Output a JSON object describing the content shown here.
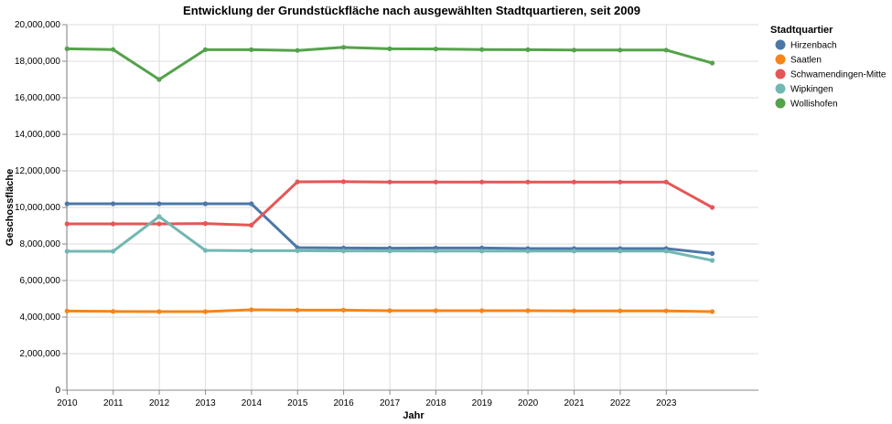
{
  "chart_data": {
    "type": "line",
    "title": "Entwicklung der Grundstückfläche nach ausgewählten Stadtquartieren, seit 2009",
    "xlabel": "Jahr",
    "ylabel": "Geschossfläche",
    "ylim": [
      0,
      20000000
    ],
    "y_ticks": [
      "0",
      "2,000,000",
      "4,000,000",
      "6,000,000",
      "8,000,000",
      "10,000,000",
      "12,000,000",
      "14,000,000",
      "16,000,000",
      "18,000,000",
      "20,000,000"
    ],
    "y_tick_values": [
      0,
      2000000,
      4000000,
      6000000,
      8000000,
      10000000,
      12000000,
      14000000,
      16000000,
      18000000,
      20000000
    ],
    "x_range": [
      "2009-12-29",
      "2024-12-31"
    ],
    "x_ticks": [
      "2010",
      "2011",
      "2012",
      "2013",
      "2014",
      "2015",
      "2016",
      "2017",
      "2018",
      "2019",
      "2020",
      "2021",
      "2022",
      "2023"
    ],
    "x": [
      "2009-12-31",
      "2010-12-31",
      "2011-12-31",
      "2012-12-31",
      "2013-12-31",
      "2014-12-31",
      "2015-12-31",
      "2016-12-31",
      "2017-12-31",
      "2018-12-31",
      "2019-12-31",
      "2020-12-31",
      "2021-12-31",
      "2022-12-31",
      "2023-12-31"
    ],
    "grid": true,
    "legend": {
      "title": "Stadtquartier",
      "placement": "right"
    },
    "series": [
      {
        "name": "Hirzenbach",
        "color": "#4c78a8",
        "values": [
          10200000,
          10200000,
          10200000,
          10200000,
          10200000,
          7800000,
          7780000,
          7770000,
          7780000,
          7780000,
          7750000,
          7750000,
          7750000,
          7750000,
          7480000
        ]
      },
      {
        "name": "Saatlen",
        "color": "#f58518",
        "values": [
          4330000,
          4310000,
          4300000,
          4300000,
          4400000,
          4380000,
          4380000,
          4350000,
          4350000,
          4350000,
          4350000,
          4340000,
          4340000,
          4340000,
          4300000
        ]
      },
      {
        "name": "Schwamendingen-Mitte",
        "color": "#e45756",
        "values": [
          9100000,
          9100000,
          9100000,
          9120000,
          9030000,
          11400000,
          11410000,
          11390000,
          11390000,
          11390000,
          11390000,
          11390000,
          11390000,
          11390000,
          10000000
        ]
      },
      {
        "name": "Wipkingen",
        "color": "#72b7b2",
        "values": [
          7600000,
          7600000,
          9500000,
          7650000,
          7630000,
          7630000,
          7620000,
          7620000,
          7610000,
          7610000,
          7610000,
          7610000,
          7610000,
          7610000,
          7100000
        ]
      },
      {
        "name": "Wollishofen",
        "color": "#54a24b",
        "values": [
          18680000,
          18640000,
          17000000,
          18630000,
          18630000,
          18590000,
          18760000,
          18680000,
          18670000,
          18640000,
          18630000,
          18610000,
          18610000,
          18610000,
          17900000
        ]
      }
    ]
  }
}
